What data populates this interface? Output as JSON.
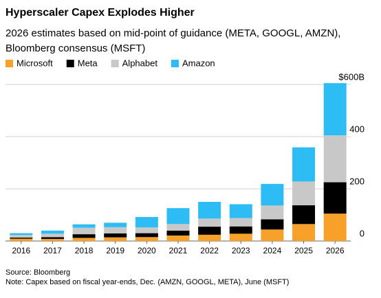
{
  "chart_data": {
    "type": "stacked_bar",
    "title": "Hyperscaler Capex Explodes Higher",
    "subtitle": "2026 estimates based on mid-point of guidance (META, GOOGL, AMZN), Bloomberg consensus (MSFT)",
    "categories": [
      "2016",
      "2017",
      "2018",
      "2019",
      "2020",
      "2021",
      "2022",
      "2023",
      "2024",
      "2025",
      "2026"
    ],
    "series": [
      {
        "name": "Microsoft",
        "color": "#f7a12a",
        "values": [
          9,
          8,
          12,
          14,
          15,
          21,
          24,
          28,
          44,
          65,
          105
        ]
      },
      {
        "name": "Meta",
        "color": "#000000",
        "values": [
          4,
          7,
          14,
          15,
          15,
          19,
          31,
          28,
          39,
          72,
          120
        ]
      },
      {
        "name": "Alphabet",
        "color": "#c8c8c8",
        "values": [
          10,
          13,
          25,
          24,
          22,
          25,
          31,
          32,
          53,
          91,
          180
        ]
      },
      {
        "name": "Amazon",
        "color": "#2dbdf4",
        "values": [
          7,
          12,
          13,
          17,
          40,
          61,
          64,
          53,
          83,
          131,
          200
        ]
      }
    ],
    "ylim": [
      0,
      620
    ],
    "yticks": [
      0,
      200,
      400,
      {
        "value": 600,
        "label": "$600B"
      }
    ],
    "grid": true,
    "legend": "top",
    "source": "Source: Bloomberg",
    "note": "Note: Capex based on fiscal year-ends, Dec. (AMZN, GOOGL, META), June (MSFT)"
  }
}
